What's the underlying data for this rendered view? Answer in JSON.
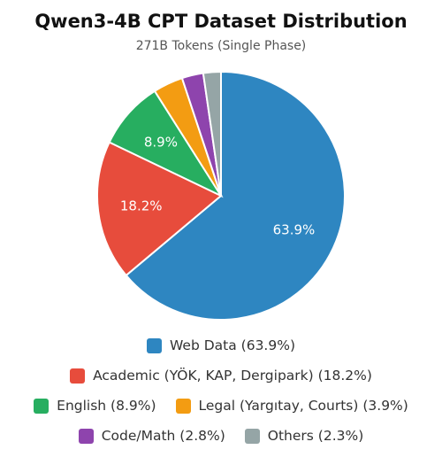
{
  "chart_data": {
    "type": "pie",
    "title": "Qwen3-4B CPT Dataset Distribution",
    "subtitle": "271B Tokens (Single Phase)",
    "slices": [
      {
        "label": "Web Data",
        "value": 63.9,
        "color": "#2e86c1",
        "slice_label": "63.9%",
        "legend": "Web Data (63.9%)"
      },
      {
        "label": "Academic (YÖK, KAP, Dergipark)",
        "value": 18.2,
        "color": "#e74c3c",
        "slice_label": "18.2%",
        "legend": "Academic (YÖK, KAP, Dergipark) (18.2%)"
      },
      {
        "label": "English",
        "value": 8.9,
        "color": "#27ae60",
        "slice_label": "8.9%",
        "legend": "English (8.9%)"
      },
      {
        "label": "Legal (Yargıtay, Courts)",
        "value": 3.9,
        "color": "#f39c12",
        "slice_label": "",
        "legend": "Legal (Yargıtay, Courts) (3.9%)"
      },
      {
        "label": "Code/Math",
        "value": 2.8,
        "color": "#8e44ad",
        "slice_label": "",
        "legend": "Code/Math (2.8%)"
      },
      {
        "label": "Others",
        "value": 2.3,
        "color": "#95a5a6",
        "slice_label": "",
        "legend": "Others (2.3%)"
      }
    ],
    "start_angle": "12 o'clock",
    "direction": "clockwise",
    "legend_position": "bottom"
  }
}
